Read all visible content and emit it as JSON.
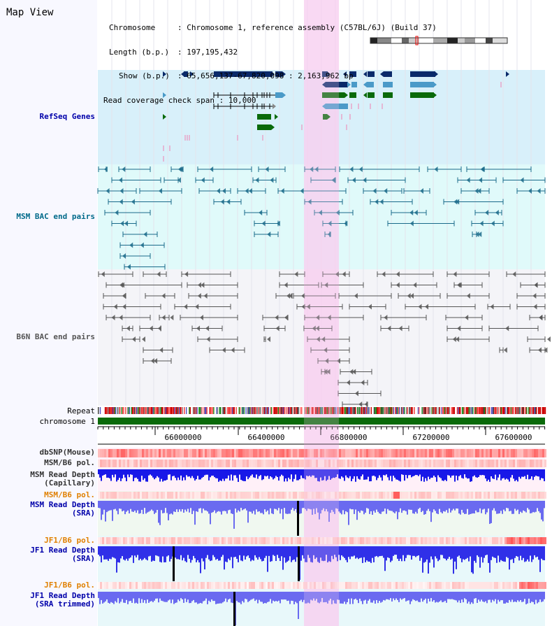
{
  "title": "Map View",
  "info": {
    "chromosome_label": "Chromosome",
    "chromosome_value": ": Chromosome 1, reference assembly (C57BL/6J) (Build 37)",
    "length_label": "Length (b.p.)",
    "length_value": ": 197,195,432",
    "show_label": "Show (b.p.)",
    "show_value": ": 65,656,137-67,820,098 : 2,163,962 bp",
    "coverage_label": "Read coverage check span",
    "coverage_value": ": 10,000"
  },
  "tracks": {
    "refseq": "RefSeq Genes",
    "msm_bac": "MSM BAC end pairs",
    "b6n_bac": "B6N BAC end pairs",
    "repeat": "Repeat",
    "chromosome": "chromosome 1",
    "dbsnp": "dbSNP(Mouse)",
    "msm_b6_pol": "MSM/B6 pol.",
    "msm_rd_cap_1": "MSM Read Depth",
    "msm_rd_cap_2": "(Capillary)",
    "msm_b6_pol_2": "MSM/B6 pol.",
    "msm_rd_sra_1": "MSM Read Depth",
    "msm_rd_sra_2": "(SRA)",
    "jf1_b6_pol": "JF1/B6 pol.",
    "jf1_rd_sra_1": "JF1 Read Depth",
    "jf1_rd_sra_2": "(SRA)",
    "jf1_b6_pol_2": "JF1/B6 pol.",
    "jf1_rd_trim_1": "JF1 Read Depth",
    "jf1_rd_trim_2": "(SRA trimmed)"
  },
  "ruler": {
    "ticks": [
      "66000000",
      "66400000",
      "66800000",
      "67200000",
      "67600000"
    ]
  },
  "colors": {
    "refseq_bg": "#d8f0fa",
    "msm_bac_bg": "#e0fafa",
    "b6n_bac_bg": "#f4f4f8",
    "highlight": "#f8d0f0",
    "gene_dark": "#0a2a6a",
    "gene_mid": "#4a9ac8",
    "gene_green": "#0a6a0a",
    "msm_bac_line": "#1a6a8a",
    "b6n_bac_line": "#555555",
    "label_blue": "#0000aa",
    "label_orange": "#e08000",
    "label_teal": "#006a8a",
    "label_gray": "#555555",
    "label_black": "#000000"
  }
}
